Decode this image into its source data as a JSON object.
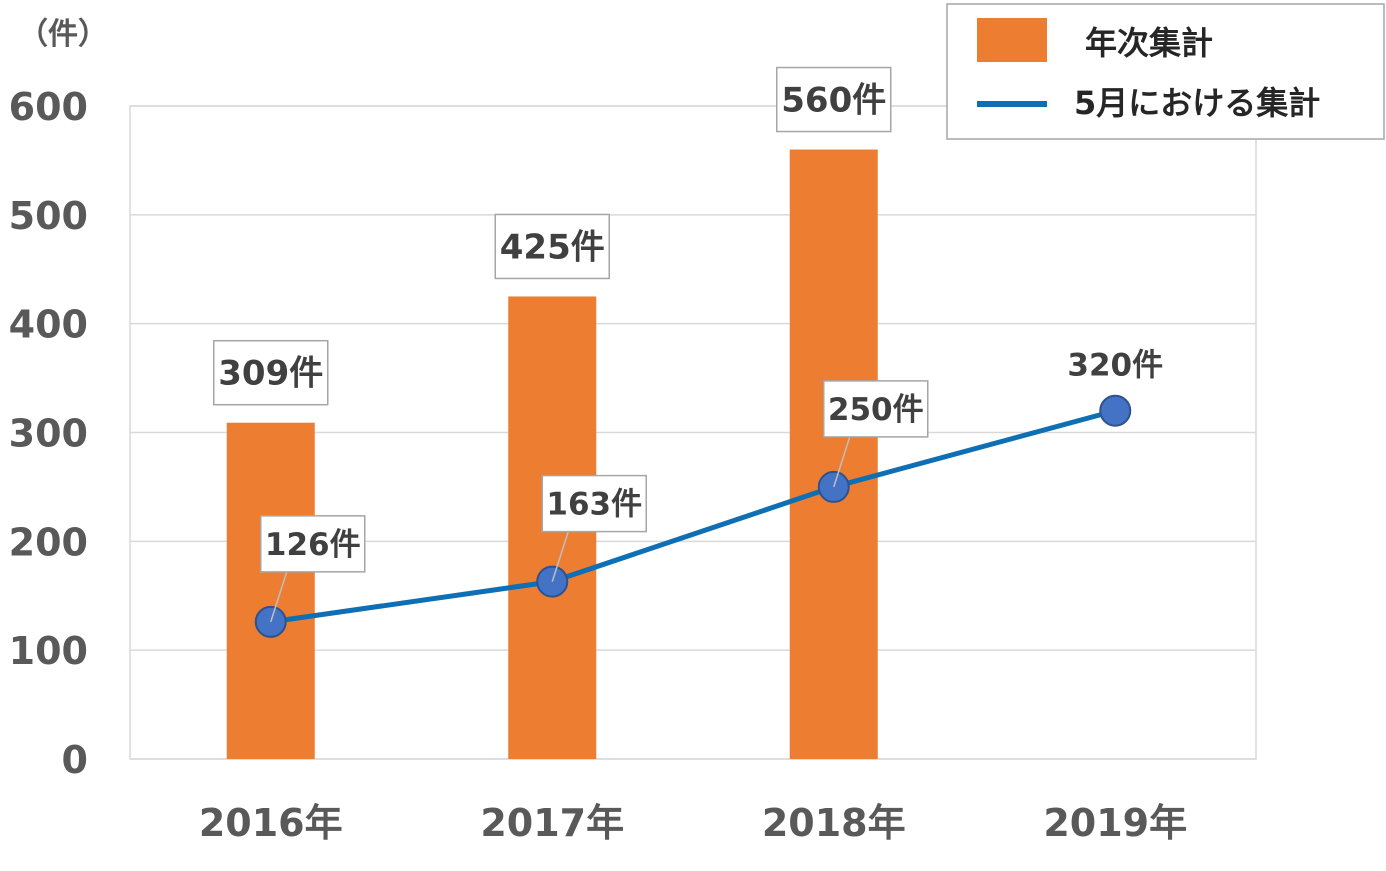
{
  "chart_data": {
    "type": "bar+line",
    "categories": [
      "2016年",
      "2017年",
      "2018年",
      "2019年"
    ],
    "y_unit": "（件）",
    "ylim": [
      0,
      600
    ],
    "yticks": [
      "0",
      "100",
      "200",
      "300",
      "400",
      "500",
      "600"
    ],
    "grid": true,
    "legend_position": "top-right",
    "series": [
      {
        "name": "年次集計",
        "type": "bar",
        "color": "#ED7D31",
        "values": [
          309,
          425,
          560,
          null
        ],
        "labels": [
          "309件",
          "425件",
          "560件",
          ""
        ]
      },
      {
        "name": "5月における集計",
        "type": "line",
        "color": "#0F6FB5",
        "marker_color": "#4472C4",
        "values": [
          126,
          163,
          250,
          320
        ],
        "labels": [
          "126件",
          "163件",
          "250件",
          "320件"
        ]
      }
    ]
  }
}
